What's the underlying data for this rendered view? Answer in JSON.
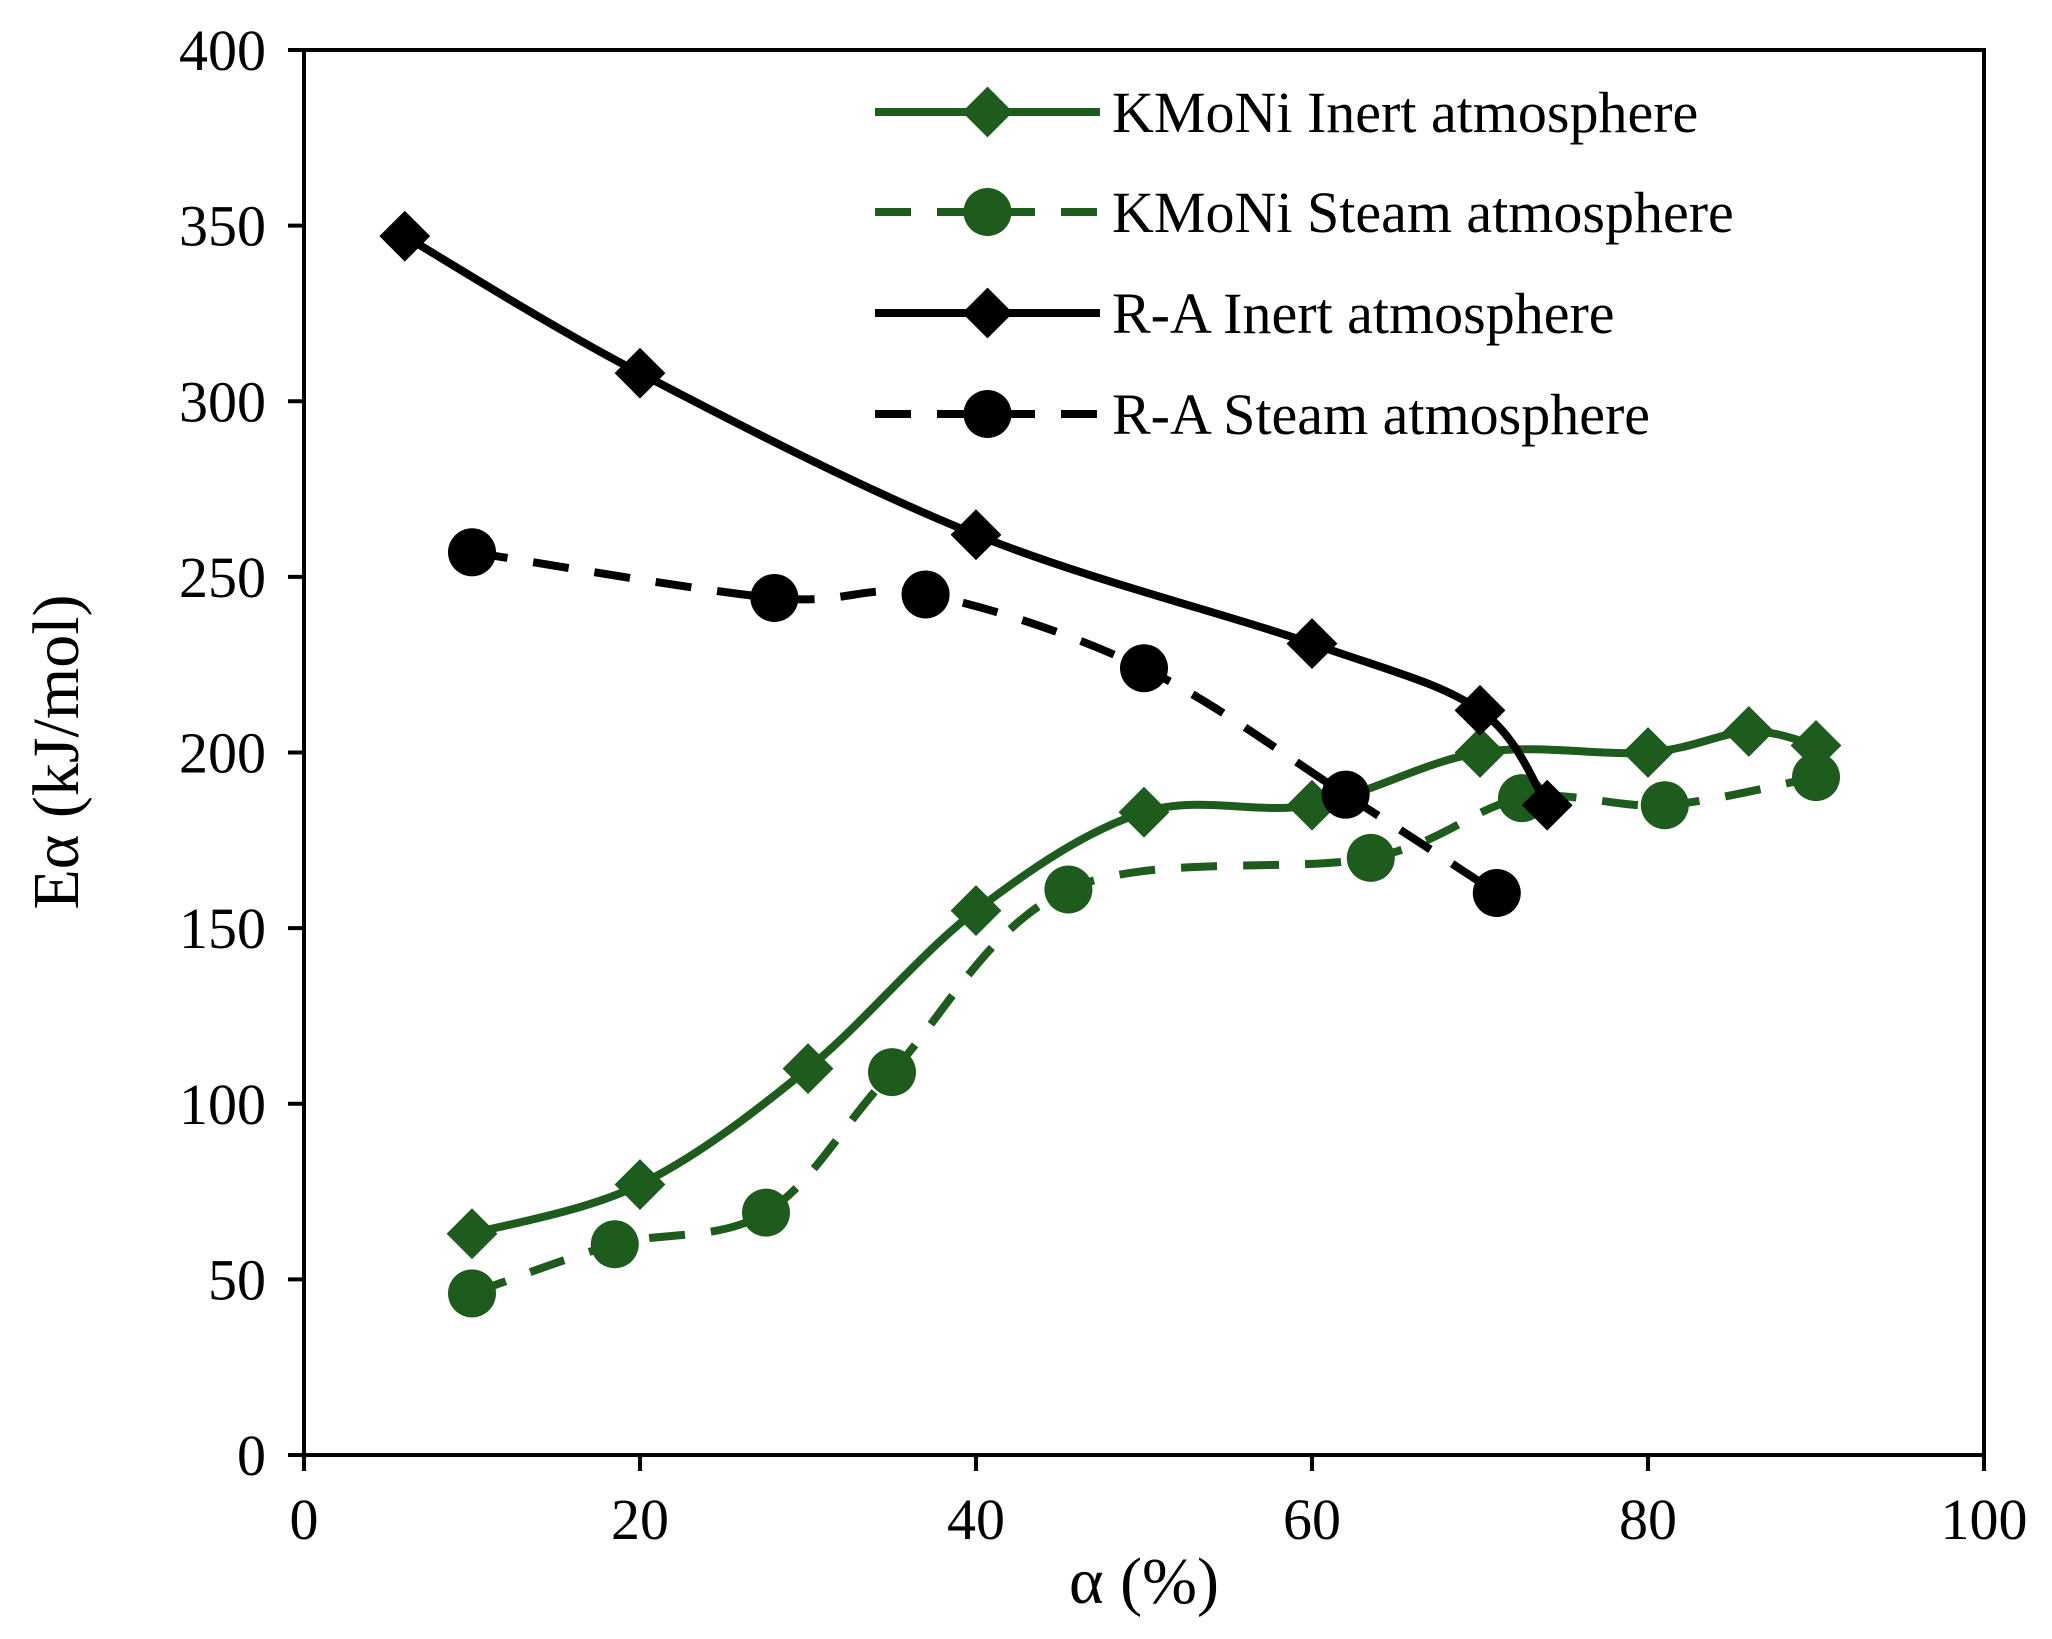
{
  "chart_data": {
    "type": "line",
    "title": "",
    "xlabel": "α (%)",
    "ylabel": "Eα (kJ/mol)",
    "xlim": [
      0,
      100
    ],
    "ylim": [
      0,
      400
    ],
    "x_ticks": [
      0,
      20,
      40,
      60,
      80,
      100
    ],
    "y_ticks": [
      0,
      50,
      100,
      150,
      200,
      250,
      300,
      350,
      400
    ],
    "grid": false,
    "legend_position": "top-right",
    "series": [
      {
        "name": "KMoNi Inert atmosphere",
        "color": "#1e5c1e",
        "line": "solid",
        "marker": "diamond",
        "x": [
          10,
          20,
          30,
          40,
          50,
          60,
          70,
          80,
          86,
          90
        ],
        "y": [
          63,
          77,
          110,
          155,
          183,
          185,
          200,
          200,
          206,
          202
        ]
      },
      {
        "name": "KMoNi Steam atmosphere",
        "color": "#1e5c1e",
        "line": "dashed",
        "marker": "circle",
        "x": [
          10,
          18.5,
          27.5,
          35,
          45.5,
          63.5,
          72.5,
          81,
          90
        ],
        "y": [
          46,
          60,
          69,
          109,
          161,
          170,
          187,
          185,
          193
        ]
      },
      {
        "name": "R-A Inert atmosphere",
        "color": "#000000",
        "line": "solid",
        "marker": "diamond",
        "x": [
          6,
          20,
          40,
          60,
          70,
          74
        ],
        "y": [
          347,
          308,
          262,
          231,
          212,
          185
        ]
      },
      {
        "name": "R-A Steam atmosphere",
        "color": "#000000",
        "line": "dashed",
        "marker": "circle",
        "x": [
          10,
          28,
          37,
          50,
          62,
          71
        ],
        "y": [
          257,
          244,
          245,
          224,
          188,
          160
        ]
      }
    ]
  }
}
